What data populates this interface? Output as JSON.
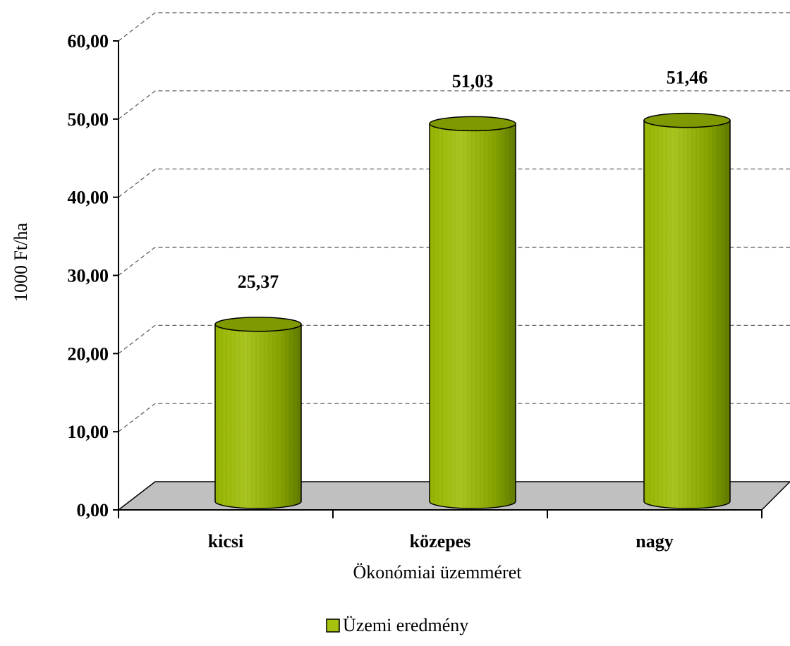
{
  "chart_data": {
    "type": "bar",
    "categories": [
      "kicsi",
      "közepes",
      "nagy"
    ],
    "series": [
      {
        "name": "Üzemi eredmény",
        "values": [
          25.37,
          51.03,
          51.46
        ]
      }
    ],
    "value_labels": [
      "25,37",
      "51,03",
      "51,46"
    ],
    "y_ticks": [
      "0,00",
      "10,00",
      "20,00",
      "30,00",
      "40,00",
      "50,00",
      "60,00"
    ],
    "ylim": [
      0,
      60
    ],
    "ylabel": "1000 Ft/ha",
    "xlabel": "Ökonómiai üzemméret",
    "grid": true,
    "legend_position": "bottom",
    "style": "3d-cylinder"
  },
  "colors": {
    "bar_light": "#a6c20e",
    "bar_mid": "#8fae00",
    "bar_dark": "#5f7a00",
    "floor": "#c0c0c0",
    "grid": "#555555"
  }
}
